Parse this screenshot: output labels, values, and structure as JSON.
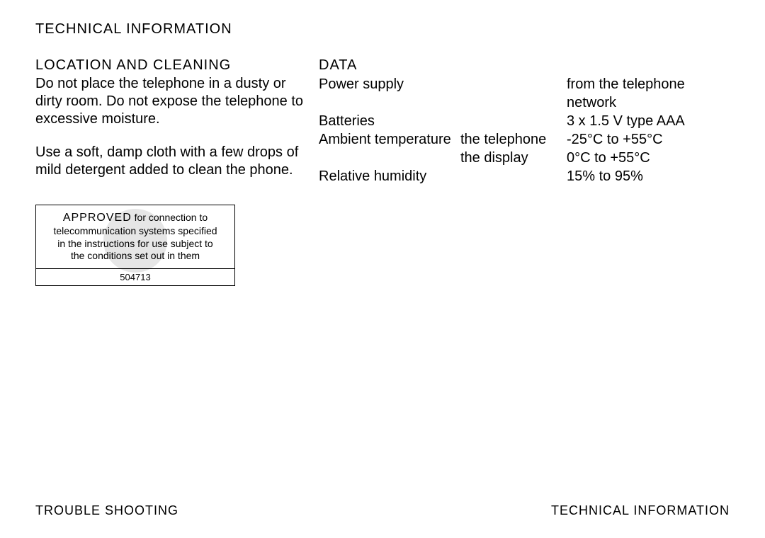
{
  "title": "TECHNICAL INFORMATION",
  "left": {
    "heading": "LOCATION AND CLEANING",
    "para1": "Do not place the telephone in a dusty or dirty room. Do not expose the telephone to excessive moisture.",
    "para2": "Use a soft, damp cloth with a few drops of mild detergent added to clean the phone."
  },
  "approval": {
    "lead": "APPROVED",
    "rest1": " for connection to",
    "line2": "telecommunication systems specified",
    "line3": "in the instructions for use subject to",
    "line4": "the conditions set out in them",
    "number": "504713"
  },
  "data": {
    "heading": "DATA",
    "rows": {
      "r1c1": "Power supply",
      "r1c2": "",
      "r1c3": "from the telephone",
      "r2c1": "",
      "r2c2": "",
      "r2c3": "network",
      "r3c1": "Batteries",
      "r3c2": "",
      "r3c3": "3 x 1.5 V type AAA",
      "r4c1": "",
      "r4c2": "",
      "r4c3": "",
      "r5c1": "Ambient temperature",
      "r5c2": "the telephone",
      "r5c3": "-25°C to +55°C",
      "r6c1": "",
      "r6c2": "the display",
      "r6c3": "0°C to +55°C",
      "r7c1": "Relative humidity",
      "r7c2": "",
      "r7c3": "15% to 95%"
    }
  },
  "footer": {
    "left": "TROUBLE SHOOTING",
    "right": "TECHNICAL INFORMATION"
  }
}
